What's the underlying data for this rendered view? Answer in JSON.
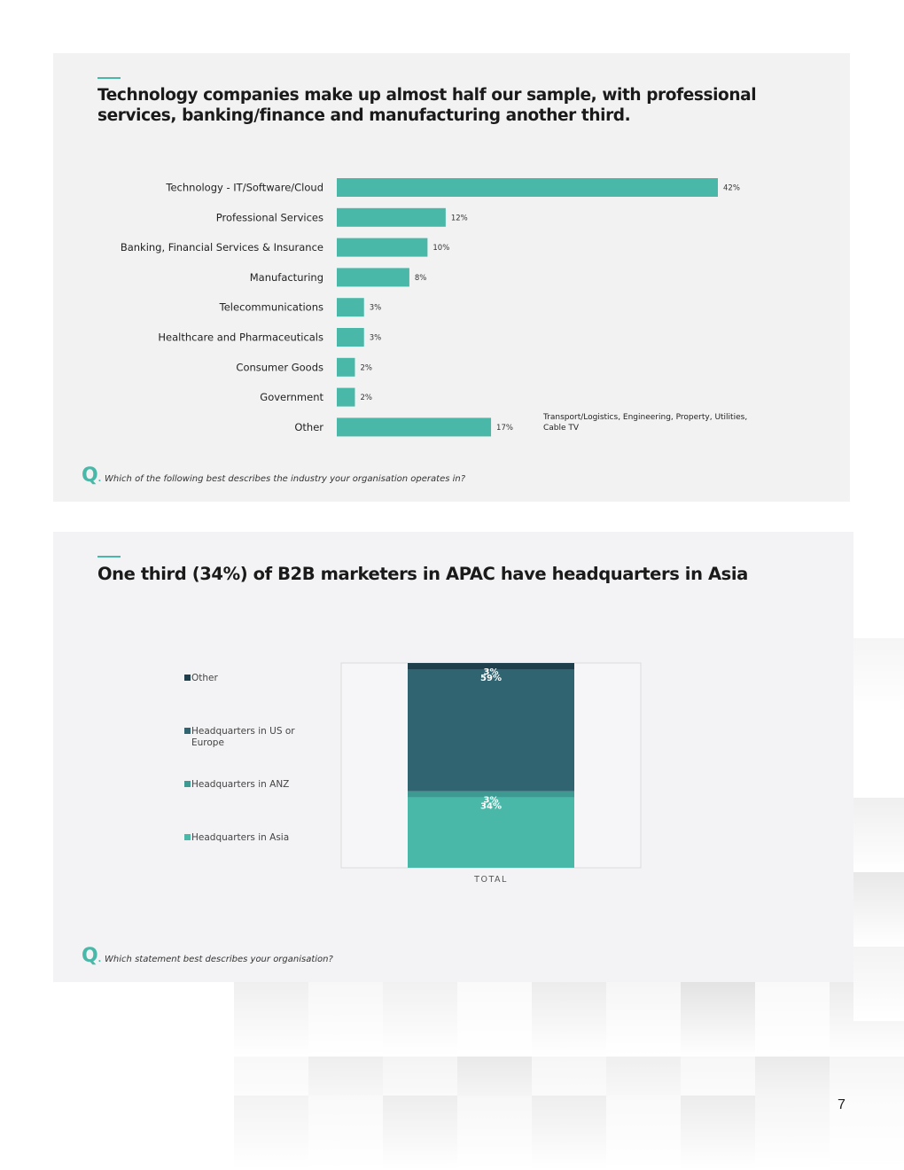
{
  "page_number": "7",
  "colors": {
    "accent": "#4ab8a8",
    "dark_teal": "#2f6470",
    "navy": "#1f3f4d",
    "mid_teal": "#3c9a93"
  },
  "chart1": {
    "title": "Technology companies make up almost half our sample, with professional services, banking/finance and manufacturing another third.",
    "annotation": {
      "line1": "Transport/Logistics, Engineering, Property, Utilities,",
      "line2": "Cable TV"
    },
    "question": "Which of the following best describes the industry your organisation operates in?"
  },
  "chart2": {
    "title": "One third (34%) of B2B marketers in APAC have headquarters in Asia",
    "question": "Which statement best describes your organisation?"
  },
  "question_marker": "Q",
  "chart_data": [
    {
      "type": "bar",
      "orientation": "horizontal",
      "title": "Technology companies make up almost half our sample, with professional services, banking/finance and manufacturing another third.",
      "categories": [
        "Technology - IT/Software/Cloud",
        "Professional Services",
        "Banking, Financial Services & Insurance",
        "Manufacturing",
        "Telecommunications",
        "Healthcare and Pharmaceuticals",
        "Consumer Goods",
        "Government",
        "Other"
      ],
      "values": [
        42,
        12,
        10,
        8,
        3,
        3,
        2,
        2,
        17
      ],
      "labels": [
        "42%",
        "12%",
        "10%",
        "8%",
        "3%",
        "3%",
        "2%",
        "2%",
        "17%"
      ],
      "color": "#4ab8a8",
      "xlim": [
        0,
        42
      ]
    },
    {
      "type": "bar",
      "stacked": true,
      "title": "One third (34%) of B2B marketers in APAC have headquarters in Asia",
      "categories": [
        "TOTAL"
      ],
      "series": [
        {
          "name": "Headquarters in Asia",
          "values": [
            34
          ],
          "label": "34%",
          "color": "#4ab8a8"
        },
        {
          "name": "Headquarters in ANZ",
          "values": [
            3
          ],
          "label": "3%",
          "color": "#3c9a93"
        },
        {
          "name": "Headquarters in US or Europe",
          "values": [
            59
          ],
          "label": "59%",
          "color": "#2f6470"
        },
        {
          "name": "Other",
          "values": [
            3
          ],
          "label": "3%",
          "color": "#1f3f4d"
        }
      ],
      "legend": {
        "position": "left",
        "order": [
          "Other",
          "Headquarters in US or Europe",
          "Headquarters in ANZ",
          "Headquarters in Asia"
        ]
      },
      "ylim": [
        0,
        100
      ]
    }
  ]
}
